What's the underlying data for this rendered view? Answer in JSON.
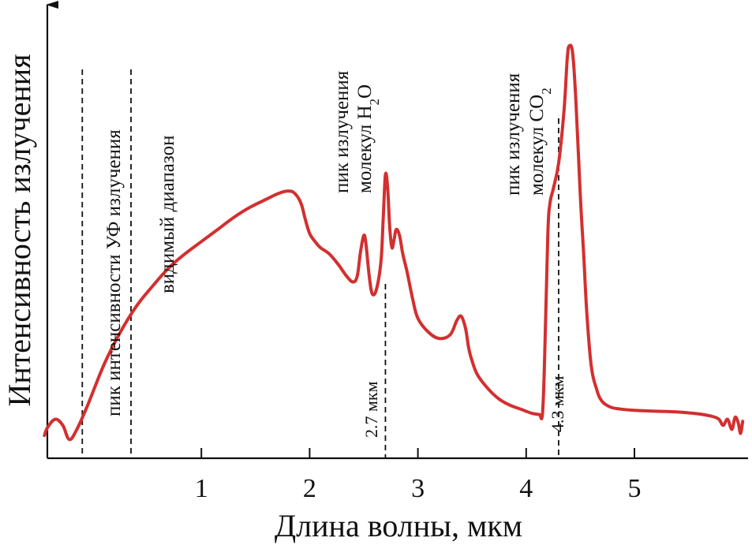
{
  "chart_data": {
    "type": "line",
    "title": "",
    "xlabel": "Длина волны, мкм",
    "ylabel": "Интенсивность излучения",
    "xlim": [
      -0.45,
      6.0
    ],
    "ylim": [
      0,
      100
    ],
    "x_ticks": [
      1,
      2,
      3,
      4,
      5
    ],
    "x_tick_labels": [
      "1",
      "2",
      "3",
      "4",
      "5"
    ],
    "grid": false,
    "colors": {
      "curve": "#d32f2f",
      "axis": "#111111"
    },
    "series": [
      {
        "name": "Интенсивность излучения",
        "x": [
          -0.45,
          -0.42,
          -0.35,
          -0.28,
          -0.22,
          -0.15,
          -0.05,
          0.1,
          0.25,
          0.4,
          0.55,
          0.7,
          0.85,
          1.0,
          1.15,
          1.3,
          1.45,
          1.6,
          1.72,
          1.8,
          1.86,
          1.92,
          1.96,
          2.0,
          2.05,
          2.1,
          2.18,
          2.26,
          2.34,
          2.4,
          2.44,
          2.47,
          2.5,
          2.52,
          2.55,
          2.58,
          2.62,
          2.66,
          2.68,
          2.7,
          2.72,
          2.74,
          2.76,
          2.78,
          2.8,
          2.83,
          2.86,
          2.9,
          2.95,
          3.0,
          3.1,
          3.2,
          3.3,
          3.36,
          3.4,
          3.44,
          3.47,
          3.5,
          3.55,
          3.65,
          3.75,
          3.85,
          3.95,
          4.05,
          4.12,
          4.15,
          4.17,
          4.2,
          4.22,
          4.25,
          4.3,
          4.35,
          4.38,
          4.4,
          4.43,
          4.46,
          4.5,
          4.53,
          4.56,
          4.6,
          4.65,
          4.7,
          4.78,
          4.88,
          5.0,
          5.2,
          5.4,
          5.6,
          5.72,
          5.78,
          5.82,
          5.86,
          5.9,
          5.93,
          5.96,
          5.98,
          6.0
        ],
        "values": [
          3.5,
          5.5,
          7.5,
          6,
          2.5,
          5,
          11,
          21,
          29,
          35.5,
          40.5,
          45,
          48.5,
          51.5,
          54.5,
          57.5,
          60,
          62,
          63.5,
          64,
          63.5,
          61,
          57,
          53.5,
          51.5,
          50,
          48.5,
          46,
          43,
          41.5,
          43,
          49,
          53,
          51,
          43,
          38.5,
          40,
          47,
          57.5,
          68,
          65,
          55,
          50,
          52,
          54.5,
          53,
          48.5,
          44,
          37.5,
          32.5,
          29,
          27.5,
          28.5,
          32,
          33,
          30,
          25,
          22,
          18.5,
          15,
          12.5,
          11,
          10,
          9,
          8.7,
          8.7,
          22,
          53,
          61,
          64.5,
          71,
          84,
          97,
          100,
          98,
          86,
          63,
          49,
          34,
          21,
          15,
          12,
          10.5,
          10,
          9.7,
          9.5,
          9.3,
          8.8,
          8.2,
          7.5,
          6,
          7.5,
          5,
          8,
          6.5,
          4,
          7
        ]
      }
    ],
    "reference_lines": [
      {
        "x": -0.1,
        "label": "пик интенсивности УФ излучения"
      },
      {
        "x": 0.35,
        "label": "видимый диапазон"
      },
      {
        "x": 2.7,
        "label_top": "пик излучения",
        "label_mid": "молекул H",
        "label_sub": "2",
        "label_end": "O",
        "marker": "2.7 мкм"
      },
      {
        "x": 4.3,
        "label_top": "пик излучения",
        "label_mid": "молекул CO",
        "label_sub": "2",
        "label_end": "",
        "marker": "4.3 мкм"
      }
    ]
  }
}
